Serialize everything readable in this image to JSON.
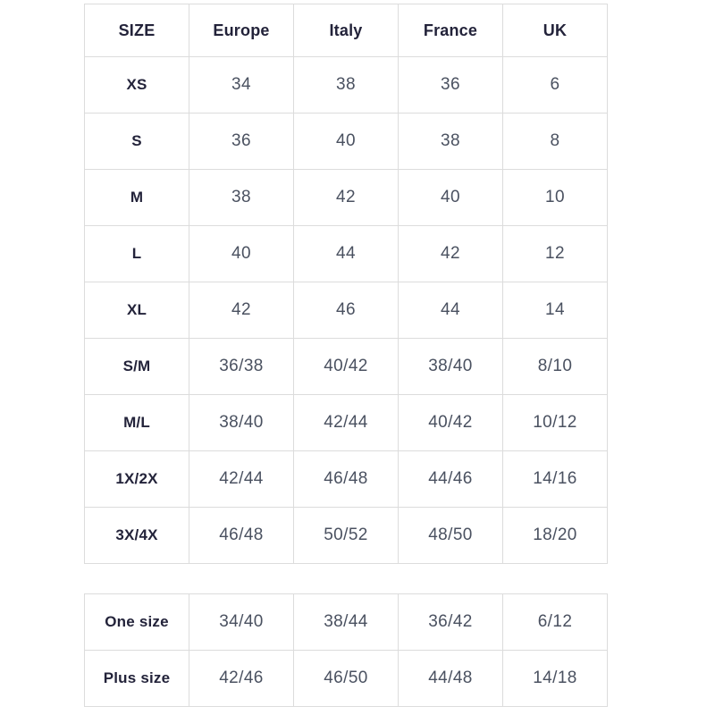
{
  "colors": {
    "border": "#dcdcdc",
    "header_text": "#23233a",
    "body_text": "#4a5160",
    "background": "#ffffff"
  },
  "size_chart": {
    "columns": [
      "SIZE",
      "Europe",
      "Italy",
      "France",
      "UK"
    ],
    "rows": [
      {
        "label": "XS",
        "europe": "34",
        "italy": "38",
        "france": "36",
        "uk": "6"
      },
      {
        "label": "S",
        "europe": "36",
        "italy": "40",
        "france": "38",
        "uk": "8"
      },
      {
        "label": "M",
        "europe": "38",
        "italy": "42",
        "france": "40",
        "uk": "10"
      },
      {
        "label": "L",
        "europe": "40",
        "italy": "44",
        "france": "42",
        "uk": "12"
      },
      {
        "label": "XL",
        "europe": "42",
        "italy": "46",
        "france": "44",
        "uk": "14"
      },
      {
        "label": "S/M",
        "europe": "36/38",
        "italy": "40/42",
        "france": "38/40",
        "uk": "8/10"
      },
      {
        "label": "M/L",
        "europe": "38/40",
        "italy": "42/44",
        "france": "40/42",
        "uk": "10/12"
      },
      {
        "label": "1X/2X",
        "europe": "42/44",
        "italy": "46/48",
        "france": "44/46",
        "uk": "14/16"
      },
      {
        "label": "3X/4X",
        "europe": "46/48",
        "italy": "50/52",
        "france": "48/50",
        "uk": "18/20"
      }
    ]
  },
  "special_sizes": {
    "rows": [
      {
        "label": "One size",
        "europe": "34/40",
        "italy": "38/44",
        "france": "36/42",
        "uk": "6/12"
      },
      {
        "label": "Plus size",
        "europe": "42/46",
        "italy": "46/50",
        "france": "44/48",
        "uk": "14/18"
      }
    ]
  }
}
